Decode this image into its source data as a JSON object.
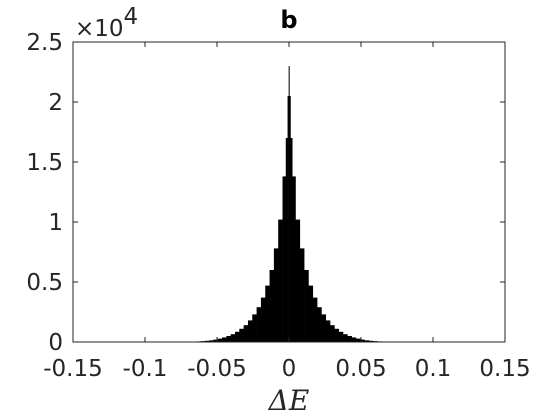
{
  "chart_data": {
    "type": "bar",
    "title": "b",
    "xlabel": "ΔE",
    "ylabel": "",
    "xlim": [
      -0.15,
      0.15
    ],
    "ylim": [
      0,
      25000
    ],
    "y_multiplier": "×10",
    "y_multiplier_exponent": "4",
    "x_ticks": [
      -0.15,
      -0.1,
      -0.05,
      0,
      0.05,
      0.1,
      0.15
    ],
    "x_tick_labels": [
      "-0.15",
      "-0.1",
      "-0.05",
      "0",
      "0.05",
      "0.1",
      "0.15"
    ],
    "y_ticks": [
      0,
      5000,
      10000,
      15000,
      20000,
      25000
    ],
    "y_tick_labels": [
      "0",
      "0.5",
      "1",
      "1.5",
      "2",
      "2.5"
    ],
    "grid": false,
    "bar_color": "#000000",
    "axis_color": "#262626",
    "bins": {
      "x_center": [
        -0.069,
        -0.066,
        -0.063,
        -0.06,
        -0.057,
        -0.054,
        -0.051,
        -0.048,
        -0.045,
        -0.042,
        -0.039,
        -0.036,
        -0.033,
        -0.03,
        -0.027,
        -0.024,
        -0.021,
        -0.018,
        -0.015,
        -0.012,
        -0.009,
        -0.006,
        -0.003,
        -0.0015,
        -0.0005,
        0,
        0.0005,
        0.0015,
        0.003,
        0.006,
        0.009,
        0.012,
        0.015,
        0.018,
        0.021,
        0.024,
        0.027,
        0.03,
        0.033,
        0.036,
        0.039,
        0.042,
        0.045,
        0.048,
        0.051,
        0.054,
        0.057,
        0.06,
        0.063,
        0.066,
        0.069
      ],
      "counts": [
        20,
        30,
        50,
        70,
        100,
        140,
        200,
        280,
        380,
        500,
        650,
        850,
        1100,
        1400,
        1800,
        2300,
        2900,
        3700,
        4700,
        6000,
        7800,
        10200,
        13800,
        17000,
        20500,
        23000,
        20500,
        17000,
        13800,
        10200,
        7800,
        6000,
        4700,
        3700,
        2900,
        2300,
        1800,
        1400,
        1100,
        850,
        650,
        500,
        380,
        280,
        200,
        140,
        100,
        70,
        50,
        30,
        20
      ]
    }
  }
}
